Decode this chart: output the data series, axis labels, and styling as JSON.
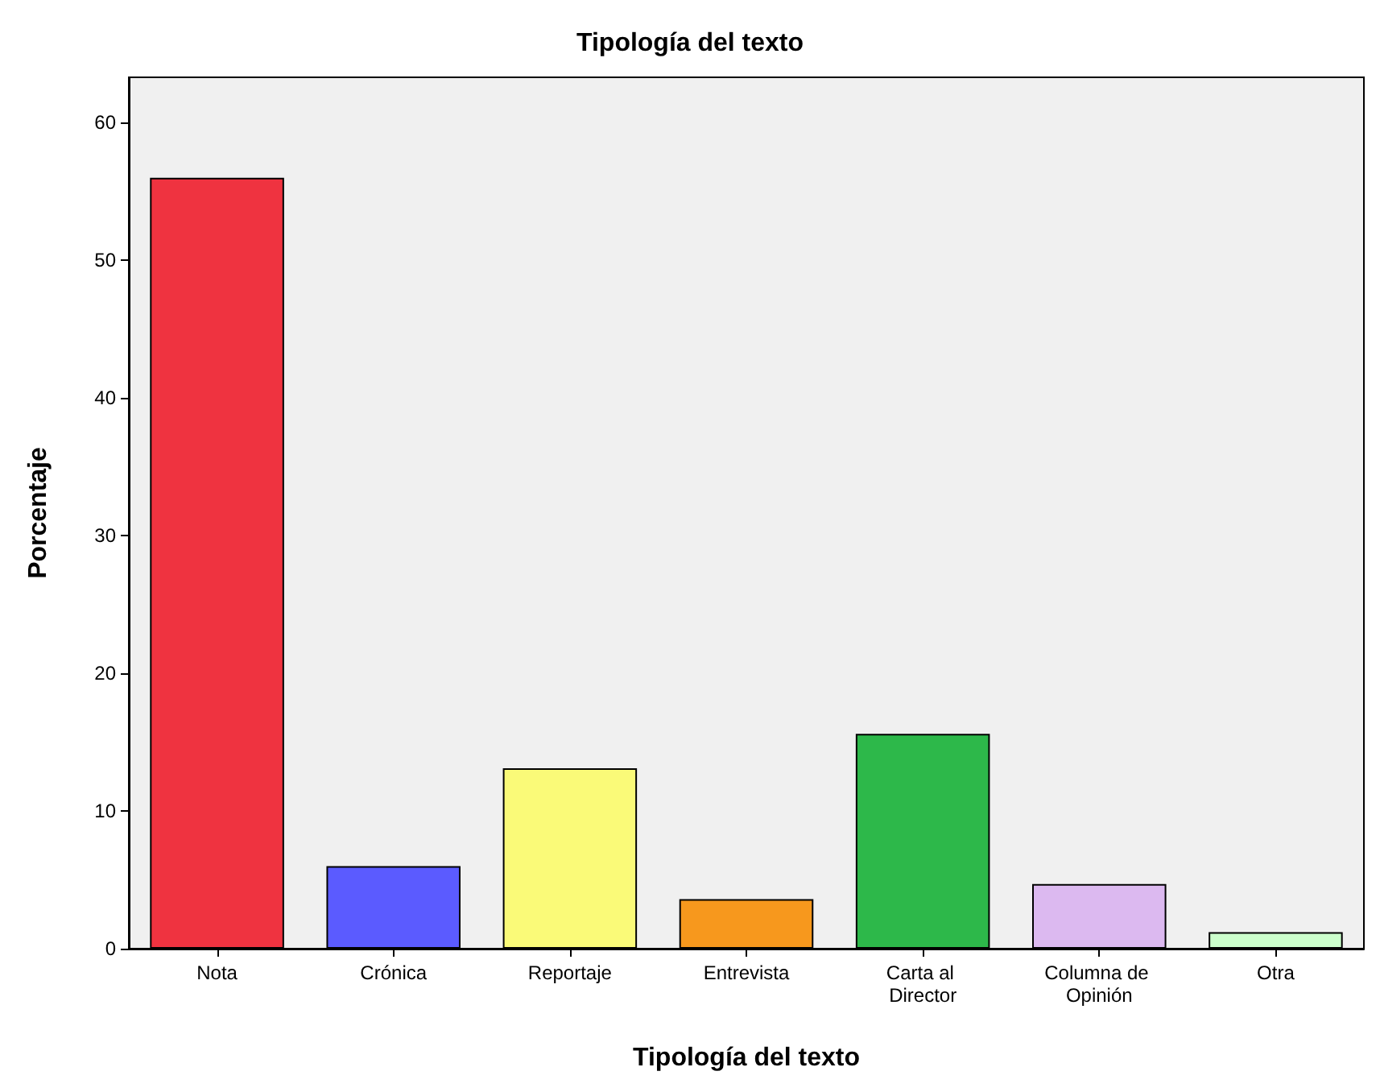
{
  "chart_data": {
    "type": "bar",
    "title": "Tipología del texto",
    "xlabel": "Tipología del texto",
    "ylabel": "Porcentaje",
    "categories": [
      "Nota",
      "Crónica",
      "Reportaje",
      "Entrevista",
      "Carta al Director",
      "Columna de Opinión",
      "Otra"
    ],
    "values": [
      56,
      6,
      13.1,
      3.6,
      15.6,
      4.7,
      1.2
    ],
    "colors": [
      "#ef3340",
      "#5b5bff",
      "#fafa78",
      "#f7981d",
      "#2db84a",
      "#dcb9f0",
      "#ccffcc"
    ],
    "ylim": [
      0,
      63.3
    ],
    "yticks": [
      0,
      10,
      20,
      30,
      40,
      50,
      60
    ],
    "grid": false
  }
}
